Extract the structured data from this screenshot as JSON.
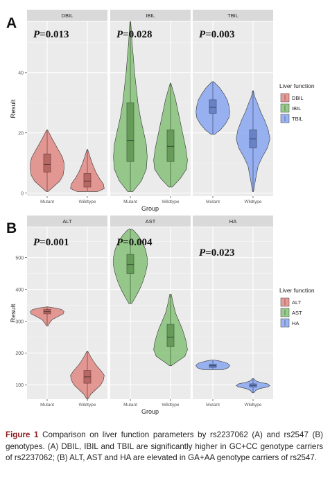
{
  "chart_data": [
    {
      "type": "violin",
      "panel_label": "A",
      "xlabel": "Group",
      "ylabel": "Result",
      "ylim": [
        -1,
        57
      ],
      "yticks": [
        0,
        20,
        40
      ],
      "categories": [
        "Mutant",
        "Wildtype"
      ],
      "legend": {
        "title": "Liver function",
        "placement": "right",
        "entries": [
          {
            "label": "DBIL",
            "color": "#e07f7a"
          },
          {
            "label": "IBIL",
            "color": "#7cbd6e"
          },
          {
            "label": "TBIL",
            "color": "#7f9ff0"
          }
        ]
      },
      "facets": [
        {
          "name": "DBIL",
          "pvalue": "P=0.013",
          "color": "#e07f7a",
          "groups": [
            {
              "x": "Mutant",
              "min": 0.5,
              "max": 21,
              "q1": 7,
              "median": 9.5,
              "q3": 13,
              "width": [
                [
                  0.5,
                  0.05
                ],
                [
                  2,
                  0.35
                ],
                [
                  4,
                  0.75
                ],
                [
                  6,
                  0.95
                ],
                [
                  8,
                  1.0
                ],
                [
                  10,
                  1.0
                ],
                [
                  12,
                  0.9
                ],
                [
                  14,
                  0.7
                ],
                [
                  16,
                  0.5
                ],
                [
                  18,
                  0.3
                ],
                [
                  20,
                  0.12
                ],
                [
                  21,
                  0.02
                ]
              ]
            },
            {
              "x": "Wildtype",
              "min": 0.5,
              "max": 14.5,
              "q1": 2,
              "median": 4,
              "q3": 6.5,
              "width": [
                [
                  0.5,
                  0.6
                ],
                [
                  1.5,
                  1.0
                ],
                [
                  3,
                  0.95
                ],
                [
                  5,
                  0.7
                ],
                [
                  7,
                  0.5
                ],
                [
                  9,
                  0.35
                ],
                [
                  11,
                  0.22
                ],
                [
                  13,
                  0.1
                ],
                [
                  14.5,
                  0.02
                ]
              ]
            }
          ]
        },
        {
          "name": "IBIL",
          "pvalue": "P=0.028",
          "color": "#7cbd6e",
          "groups": [
            {
              "x": "Mutant",
              "min": 0.5,
              "max": 57,
              "q1": 10.5,
              "median": 17.5,
              "q3": 30,
              "width": [
                [
                  0.5,
                  0.15
                ],
                [
                  4,
                  0.65
                ],
                [
                  8,
                  0.95
                ],
                [
                  12,
                  1.0
                ],
                [
                  16,
                  0.95
                ],
                [
                  20,
                  0.8
                ],
                [
                  25,
                  0.6
                ],
                [
                  30,
                  0.45
                ],
                [
                  35,
                  0.35
                ],
                [
                  40,
                  0.25
                ],
                [
                  45,
                  0.18
                ],
                [
                  50,
                  0.1
                ],
                [
                  54,
                  0.06
                ],
                [
                  57,
                  0.02
                ]
              ]
            },
            {
              "x": "Wildtype",
              "min": 2,
              "max": 36.5,
              "q1": 10.5,
              "median": 15.5,
              "q3": 21,
              "width": [
                [
                  2,
                  0.1
                ],
                [
                  5,
                  0.6
                ],
                [
                  8,
                  0.95
                ],
                [
                  11,
                  1.0
                ],
                [
                  15,
                  0.9
                ],
                [
                  19,
                  0.75
                ],
                [
                  23,
                  0.6
                ],
                [
                  27,
                  0.45
                ],
                [
                  31,
                  0.3
                ],
                [
                  34,
                  0.15
                ],
                [
                  36.5,
                  0.02
                ]
              ]
            }
          ]
        },
        {
          "name": "TBIL",
          "pvalue": "P=0.003",
          "color": "#7f9ff0",
          "groups": [
            {
              "x": "Mutant",
              "min": 19.5,
              "max": 37,
              "q1": 26.5,
              "median": 28.5,
              "q3": 31,
              "width": [
                [
                  19.5,
                  0.1
                ],
                [
                  21,
                  0.45
                ],
                [
                  23,
                  0.75
                ],
                [
                  25,
                  0.95
                ],
                [
                  27,
                  1.0
                ],
                [
                  29,
                  0.95
                ],
                [
                  31,
                  0.85
                ],
                [
                  33,
                  0.65
                ],
                [
                  35,
                  0.4
                ],
                [
                  37,
                  0.05
                ]
              ]
            },
            {
              "x": "Wildtype",
              "min": 0.5,
              "max": 34,
              "q1": 15,
              "median": 18,
              "q3": 21,
              "width": [
                [
                  0.5,
                  0.03
                ],
                [
                  3,
                  0.1
                ],
                [
                  6,
                  0.2
                ],
                [
                  9,
                  0.3
                ],
                [
                  12,
                  0.55
                ],
                [
                  15,
                  0.85
                ],
                [
                  18,
                  1.0
                ],
                [
                  21,
                  0.9
                ],
                [
                  24,
                  0.7
                ],
                [
                  27,
                  0.45
                ],
                [
                  30,
                  0.25
                ],
                [
                  32,
                  0.1
                ],
                [
                  34,
                  0.02
                ]
              ]
            }
          ]
        }
      ]
    },
    {
      "type": "violin",
      "panel_label": "B",
      "xlabel": "Group",
      "ylabel": "Result",
      "ylim": [
        55,
        595
      ],
      "yticks": [
        100,
        200,
        300,
        400,
        500
      ],
      "categories": [
        "Mutant",
        "Wildtype"
      ],
      "legend": {
        "title": "Liver function",
        "placement": "right",
        "entries": [
          {
            "label": "ALT",
            "color": "#e07f7a"
          },
          {
            "label": "AST",
            "color": "#7cbd6e"
          },
          {
            "label": "HA",
            "color": "#7f9ff0"
          }
        ]
      },
      "facets": [
        {
          "name": "ALT",
          "pvalue": "P=0.001",
          "color": "#e07f7a",
          "groups": [
            {
              "x": "Mutant",
              "min": 285,
              "max": 345,
              "q1": 323,
              "median": 330,
              "q3": 337,
              "width": [
                [
                  285,
                  0.04
                ],
                [
                  295,
                  0.15
                ],
                [
                  305,
                  0.3
                ],
                [
                  315,
                  0.65
                ],
                [
                  323,
                  0.95
                ],
                [
                  330,
                  1.0
                ],
                [
                  337,
                  0.85
                ],
                [
                  342,
                  0.4
                ],
                [
                  345,
                  0.03
                ]
              ]
            },
            {
              "x": "Wildtype",
              "min": 55,
              "max": 205,
              "q1": 105,
              "median": 125,
              "q3": 145,
              "width": [
                [
                  55,
                  0.03
                ],
                [
                  70,
                  0.2
                ],
                [
                  85,
                  0.5
                ],
                [
                  100,
                  0.8
                ],
                [
                  115,
                  0.95
                ],
                [
                  130,
                  1.0
                ],
                [
                  145,
                  0.8
                ],
                [
                  160,
                  0.55
                ],
                [
                  175,
                  0.35
                ],
                [
                  190,
                  0.18
                ],
                [
                  205,
                  0.03
                ]
              ]
            }
          ]
        },
        {
          "name": "AST",
          "pvalue": "P=0.004",
          "color": "#7cbd6e",
          "groups": [
            {
              "x": "Mutant",
              "min": 355,
              "max": 590,
              "q1": 450,
              "median": 478,
              "q3": 510,
              "width": [
                [
                  355,
                  0.08
                ],
                [
                  375,
                  0.3
                ],
                [
                  400,
                  0.55
                ],
                [
                  425,
                  0.75
                ],
                [
                  450,
                  0.9
                ],
                [
                  475,
                  1.0
                ],
                [
                  500,
                  1.0
                ],
                [
                  525,
                  0.9
                ],
                [
                  550,
                  0.7
                ],
                [
                  570,
                  0.45
                ],
                [
                  585,
                  0.2
                ],
                [
                  590,
                  0.05
                ]
              ]
            },
            {
              "x": "Wildtype",
              "min": 160,
              "max": 385,
              "q1": 220,
              "median": 250,
              "q3": 290,
              "width": [
                [
                  160,
                  0.05
                ],
                [
                  175,
                  0.45
                ],
                [
                  190,
                  0.85
                ],
                [
                  210,
                  1.0
                ],
                [
                  230,
                  0.95
                ],
                [
                  250,
                  0.85
                ],
                [
                  275,
                  0.7
                ],
                [
                  300,
                  0.5
                ],
                [
                  325,
                  0.3
                ],
                [
                  350,
                  0.18
                ],
                [
                  370,
                  0.1
                ],
                [
                  385,
                  0.04
                ]
              ]
            }
          ]
        },
        {
          "name": "HA",
          "pvalue": "P=0.023",
          "color": "#7f9ff0",
          "groups": [
            {
              "x": "Mutant",
              "min": 148,
              "max": 178,
              "q1": 155,
              "median": 160,
              "q3": 165,
              "width": [
                [
                  148,
                  0.6
                ],
                [
                  152,
                  0.85
                ],
                [
                  156,
                  0.95
                ],
                [
                  160,
                  1.0
                ],
                [
                  164,
                  0.95
                ],
                [
                  168,
                  0.85
                ],
                [
                  172,
                  0.6
                ],
                [
                  176,
                  0.3
                ],
                [
                  178,
                  0.05
                ]
              ]
            },
            {
              "x": "Wildtype",
              "min": 75,
              "max": 120,
              "q1": 93,
              "median": 98,
              "q3": 103,
              "width": [
                [
                  75,
                  0.05
                ],
                [
                  82,
                  0.15
                ],
                [
                  88,
                  0.4
                ],
                [
                  94,
                  0.9
                ],
                [
                  98,
                  1.0
                ],
                [
                  103,
                  0.85
                ],
                [
                  108,
                  0.4
                ],
                [
                  113,
                  0.15
                ],
                [
                  120,
                  0.03
                ]
              ]
            }
          ]
        }
      ]
    }
  ],
  "caption": {
    "label": "Figure 1",
    "text": "Comparison on liver function parameters by rs2237062 (A) and rs2547 (B) genotypes. (A) DBIL, IBIL and TBIL are significantly higher in GC+CC genotype carriers of rs2237062; (B) ALT, AST and HA are elevated in GA+AA genotype carriers of rs2547."
  }
}
